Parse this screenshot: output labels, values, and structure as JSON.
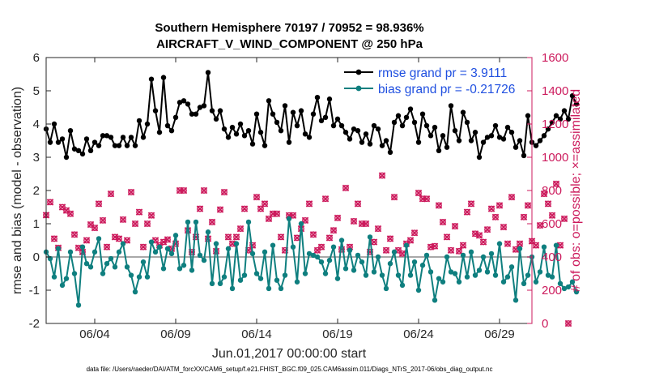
{
  "chart_data": {
    "type": "line",
    "title": "Southern Hemisphere 70197 / 70952 = 98.936%",
    "subtitle": "AIRCRAFT_V_WIND_COMPONENT @ 250 hPa",
    "xlabel": "Jun.01,2017 00:00:00 start",
    "ylabel_left": "rmse and bias (model - observation)",
    "ylabel_right": "# of obs: o=possible; ×=assimilated",
    "ylim_left": [
      -2,
      6
    ],
    "ylim_right": [
      0,
      1600
    ],
    "yticks_left": [
      "-2",
      "-1",
      "0",
      "1",
      "2",
      "3",
      "4",
      "5",
      "6"
    ],
    "yticks_right": [
      "0",
      "200",
      "400",
      "600",
      "800",
      "1000",
      "1200",
      "1400",
      "1600"
    ],
    "xlim": [
      1.0,
      31.0
    ],
    "xticks": [
      {
        "value": 4,
        "label": "06/04"
      },
      {
        "value": 9,
        "label": "06/09"
      },
      {
        "value": 14,
        "label": "06/14"
      },
      {
        "value": 19,
        "label": "06/19"
      },
      {
        "value": 24,
        "label": "06/24"
      },
      {
        "value": 29,
        "label": "06/29"
      }
    ],
    "legend_position": "top-right",
    "grid": false,
    "series": [
      {
        "name": "rmse grand pr = 3.9111",
        "color": "#000000",
        "axis": "left",
        "values": [
          3.85,
          3.45,
          4.0,
          3.45,
          3.55,
          3.0,
          3.8,
          3.25,
          3.2,
          3.1,
          3.55,
          3.2,
          3.45,
          3.35,
          3.65,
          3.65,
          3.6,
          3.35,
          3.35,
          3.6,
          3.35,
          3.6,
          3.35,
          4.1,
          3.6,
          4.0,
          5.35,
          4.4,
          3.75,
          5.4,
          3.95,
          3.8,
          4.2,
          4.65,
          4.7,
          4.6,
          4.3,
          4.3,
          4.5,
          4.55,
          5.55,
          4.4,
          4.15,
          4.4,
          3.85,
          3.6,
          3.9,
          3.7,
          4.0,
          3.65,
          3.8,
          3.4,
          4.3,
          3.75,
          3.35,
          4.7,
          4.3,
          4.05,
          3.8,
          4.55,
          3.45,
          4.35,
          3.95,
          4.4,
          3.7,
          3.6,
          4.3,
          4.8,
          4.1,
          4.2,
          4.75,
          3.95,
          4.15,
          3.95,
          3.75,
          3.55,
          3.85,
          3.8,
          3.45,
          3.7,
          3.4,
          3.95,
          3.85,
          3.35,
          3.5,
          3.15,
          4.05,
          4.25,
          3.95,
          4.2,
          4.45,
          4.05,
          3.45,
          4.3,
          3.95,
          3.65,
          3.9,
          3.2,
          3.65,
          3.3,
          4.55,
          3.8,
          3.5,
          4.35,
          4.05,
          3.5,
          3.75,
          3.0,
          3.45,
          3.6,
          3.65,
          3.95,
          3.6,
          3.55,
          3.9,
          3.75,
          3.3,
          3.5,
          3.05,
          4.25,
          3.45,
          3.35,
          3.5,
          3.65,
          3.85,
          4.05,
          4.25,
          4.15,
          4.4,
          4.15,
          4.85,
          4.6
        ]
      },
      {
        "name": "bias grand pr = -0.21726",
        "color": "#0f7f7f",
        "axis": "left",
        "values": [
          0.15,
          -0.05,
          -0.6,
          0.25,
          -0.85,
          -0.65,
          0.15,
          -0.5,
          -1.45,
          0.3,
          -0.2,
          -0.3,
          0.15,
          0.55,
          -0.5,
          -0.2,
          -0.05,
          -0.3,
          0.15,
          0.4,
          -0.3,
          -0.55,
          -1.05,
          -0.6,
          -0.15,
          -0.6,
          0.45,
          0.15,
          0.3,
          -0.35,
          0.25,
          0.1,
          0.65,
          -0.35,
          -0.25,
          1.05,
          -0.4,
          1.05,
          0.05,
          -0.1,
          0.75,
          -0.8,
          0.4,
          -0.8,
          -0.6,
          0.25,
          -0.95,
          0.4,
          -0.7,
          -0.55,
          1.05,
          0.1,
          -0.5,
          -0.65,
          0.15,
          -0.95,
          0.35,
          -0.7,
          -0.95,
          -0.55,
          1.15,
          0.3,
          -0.75,
          1.0,
          -0.5,
          0.1,
          0.05,
          0.0,
          -0.15,
          -0.5,
          -0.1,
          0.3,
          -0.65,
          0.5,
          -0.35,
          0.2,
          -0.4,
          0.05,
          -0.15,
          -0.55,
          0.6,
          -0.45,
          0.0,
          -0.55,
          -0.95,
          -0.2,
          0.15,
          -0.55,
          -0.85,
          0.35,
          -0.55,
          -0.15,
          -1.0,
          -0.25,
          0.05,
          -0.45,
          -1.3,
          -0.65,
          -0.75,
          0.0,
          -0.45,
          -0.5,
          -0.75,
          0.05,
          -0.6,
          0.15,
          -0.55,
          -0.4,
          0.0,
          -0.45,
          0.1,
          -0.55,
          0.4,
          -0.75,
          -0.6,
          -0.3,
          -1.3,
          0.25,
          -0.8,
          -0.55,
          0.0,
          -0.75,
          -0.45,
          0.3,
          -0.55,
          -0.6,
          0.35,
          -0.8,
          -0.95,
          -0.9,
          -0.75,
          -1.05
        ]
      },
      {
        "name": "obs possible",
        "color": "#cc1a5c",
        "axis": "right",
        "marker": "o",
        "values": [
          652,
          730,
          510,
          455,
          700,
          680,
          660,
          535,
          455,
          430,
          500,
          595,
          575,
          720,
          620,
          460,
          780,
          520,
          510,
          625,
          500,
          790,
          600,
          670,
          460,
          600,
          650,
          500,
          470,
          490,
          505,
          450,
          480,
          800,
          800,
          560,
          430,
          520,
          690,
          800,
          510,
          610,
          435,
          685,
          790,
          520,
          480,
          520,
          570,
          690,
          440,
          470,
          760,
          690,
          720,
          630,
          660,
          660,
          520,
          440,
          650,
          650,
          515,
          570,
          620,
          720,
          535,
          440,
          460,
          750,
          515,
          560,
          635,
          445,
          815,
          460,
          615,
          720,
          600,
          600,
          430,
          490,
          570,
          890,
          440,
          510,
          760,
          440,
          420,
          480,
          500,
          545,
          785,
          750,
          750,
          460,
          465,
          710,
          610,
          520,
          440,
          585,
          435,
          470,
          670,
          720,
          540,
          530,
          490,
          565,
          690,
          640,
          710,
          580,
          480,
          760,
          445,
          480,
          640,
          710,
          495,
          470,
          590,
          780,
          720,
          650,
          840,
          470,
          630,
          0
        ]
      },
      {
        "name": "obs assimilated",
        "color": "#cc1a5c",
        "axis": "right",
        "marker": "x",
        "values": [
          652,
          730,
          510,
          455,
          700,
          680,
          660,
          535,
          455,
          430,
          500,
          595,
          575,
          720,
          620,
          460,
          780,
          520,
          510,
          625,
          500,
          790,
          600,
          670,
          460,
          600,
          650,
          500,
          470,
          490,
          505,
          450,
          480,
          800,
          800,
          560,
          430,
          520,
          690,
          800,
          510,
          610,
          435,
          685,
          790,
          520,
          480,
          520,
          570,
          690,
          440,
          470,
          760,
          690,
          720,
          630,
          660,
          660,
          520,
          440,
          650,
          650,
          515,
          570,
          620,
          720,
          535,
          440,
          460,
          750,
          515,
          560,
          635,
          445,
          815,
          460,
          615,
          720,
          600,
          600,
          430,
          490,
          570,
          890,
          440,
          510,
          760,
          440,
          420,
          480,
          500,
          545,
          785,
          750,
          750,
          460,
          465,
          710,
          610,
          520,
          440,
          585,
          435,
          470,
          670,
          720,
          540,
          530,
          490,
          565,
          690,
          640,
          710,
          580,
          480,
          760,
          445,
          480,
          640,
          710,
          495,
          470,
          590,
          780,
          720,
          650,
          840,
          470,
          630,
          0
        ]
      }
    ]
  },
  "footer": "data file: /Users/raeder/DAI/ATM_forcXX/CAM6_setup/f.e21.FHIST_BGC.f09_025.CAM6assim.011/Diags_NTrS_2017-06/obs_diag_output.nc",
  "colors": {
    "rmse": "#000000",
    "bias": "#0f7f7f",
    "obs": "#cc1a5c",
    "zero_line": "#a9a9a9",
    "right_axis": "#cc1a5c"
  }
}
